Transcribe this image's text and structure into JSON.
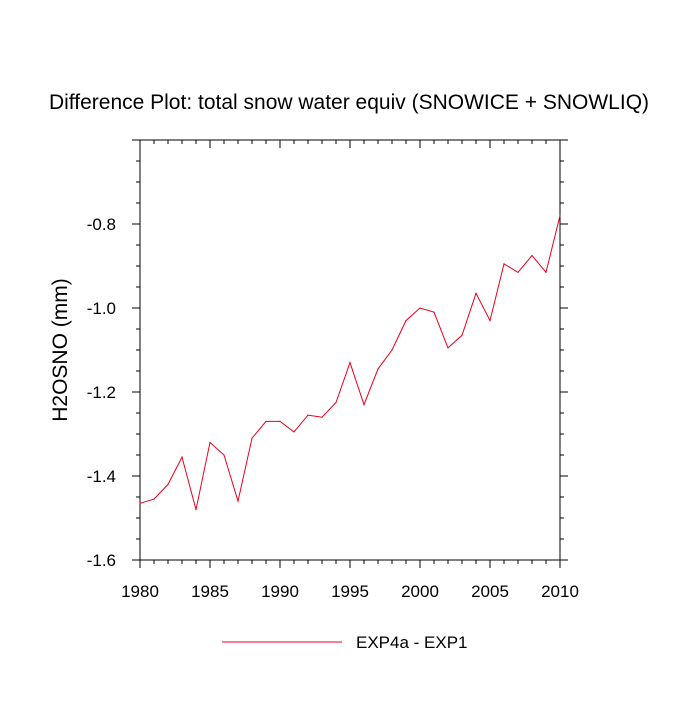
{
  "chart_data": {
    "type": "line",
    "title": "Difference Plot: total snow water equiv (SNOWICE + SNOWLIQ)",
    "xlabel": "",
    "ylabel": "H2OSNO  (mm)",
    "xlim": [
      1980,
      2010
    ],
    "ylim": [
      -1.6,
      -0.6
    ],
    "x_ticks": [
      1980,
      1985,
      1990,
      1995,
      2000,
      2005,
      2010
    ],
    "x_tick_labels": [
      "1980",
      "1985",
      "1990",
      "1995",
      "2000",
      "2005",
      "2010"
    ],
    "y_ticks": [
      -1.6,
      -1.4,
      -1.2,
      -1.0,
      -0.8
    ],
    "y_tick_labels": [
      "-1.6",
      "-1.4",
      "-1.2",
      "-1.0",
      "-0.8"
    ],
    "grid": false,
    "legend_position": "bottom-center",
    "series": [
      {
        "name": "EXP4a - EXP1",
        "color": "#e8001c",
        "x": [
          1980,
          1981,
          1982,
          1983,
          1984,
          1985,
          1986,
          1987,
          1988,
          1989,
          1990,
          1991,
          1992,
          1993,
          1994,
          1995,
          1996,
          1997,
          1998,
          1999,
          2000,
          2001,
          2002,
          2003,
          2004,
          2005,
          2006,
          2007,
          2008,
          2009,
          2010
        ],
        "values": [
          -1.465,
          -1.455,
          -1.42,
          -1.355,
          -1.48,
          -1.32,
          -1.35,
          -1.46,
          -1.31,
          -1.27,
          -1.27,
          -1.295,
          -1.255,
          -1.26,
          -1.225,
          -1.13,
          -1.23,
          -1.145,
          -1.1,
          -1.03,
          -1.0,
          -1.01,
          -1.095,
          -1.065,
          -0.965,
          -1.03,
          -0.895,
          -0.915,
          -0.875,
          -0.915,
          -0.78
        ]
      }
    ]
  }
}
